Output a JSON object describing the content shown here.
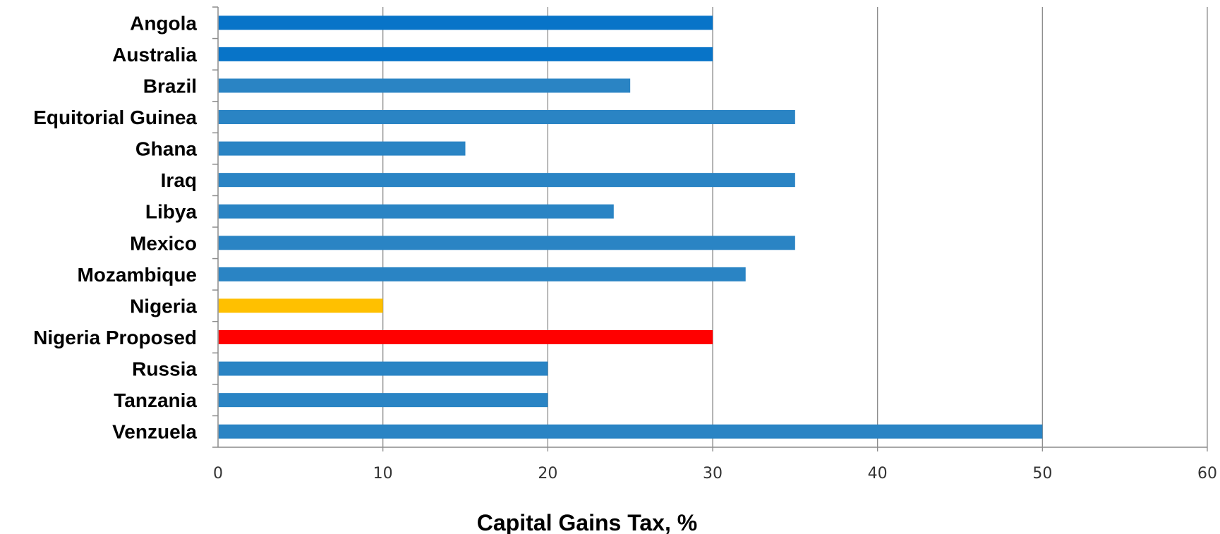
{
  "chart_data": {
    "type": "bar",
    "orientation": "horizontal",
    "title": "",
    "xlabel": "Capital Gains Tax, %",
    "ylabel": "",
    "xlim": [
      0,
      60
    ],
    "x_ticks": [
      "0",
      "10",
      "20",
      "30",
      "40",
      "50",
      "60"
    ],
    "grid": "vertical",
    "legend": "none",
    "categories": [
      "Angola",
      "Australia",
      "Brazil",
      "Equitorial Guinea",
      "Ghana",
      "Iraq",
      "Libya",
      "Mexico",
      "Mozambique",
      "Nigeria",
      "Nigeria Proposed",
      "Russia",
      "Tanzania",
      "Venzuela"
    ],
    "values": [
      30,
      30,
      25,
      35,
      15,
      35,
      24,
      35,
      32,
      10,
      30,
      20,
      20,
      50
    ],
    "bar_colors": [
      "#0874c8",
      "#0874c8",
      "#2a84c4",
      "#2a84c4",
      "#2a84c4",
      "#2a84c4",
      "#2a84c4",
      "#2a84c4",
      "#2a84c4",
      "#ffc000",
      "#ff0000",
      "#2a84c4",
      "#2a84c4",
      "#2a84c4"
    ]
  }
}
